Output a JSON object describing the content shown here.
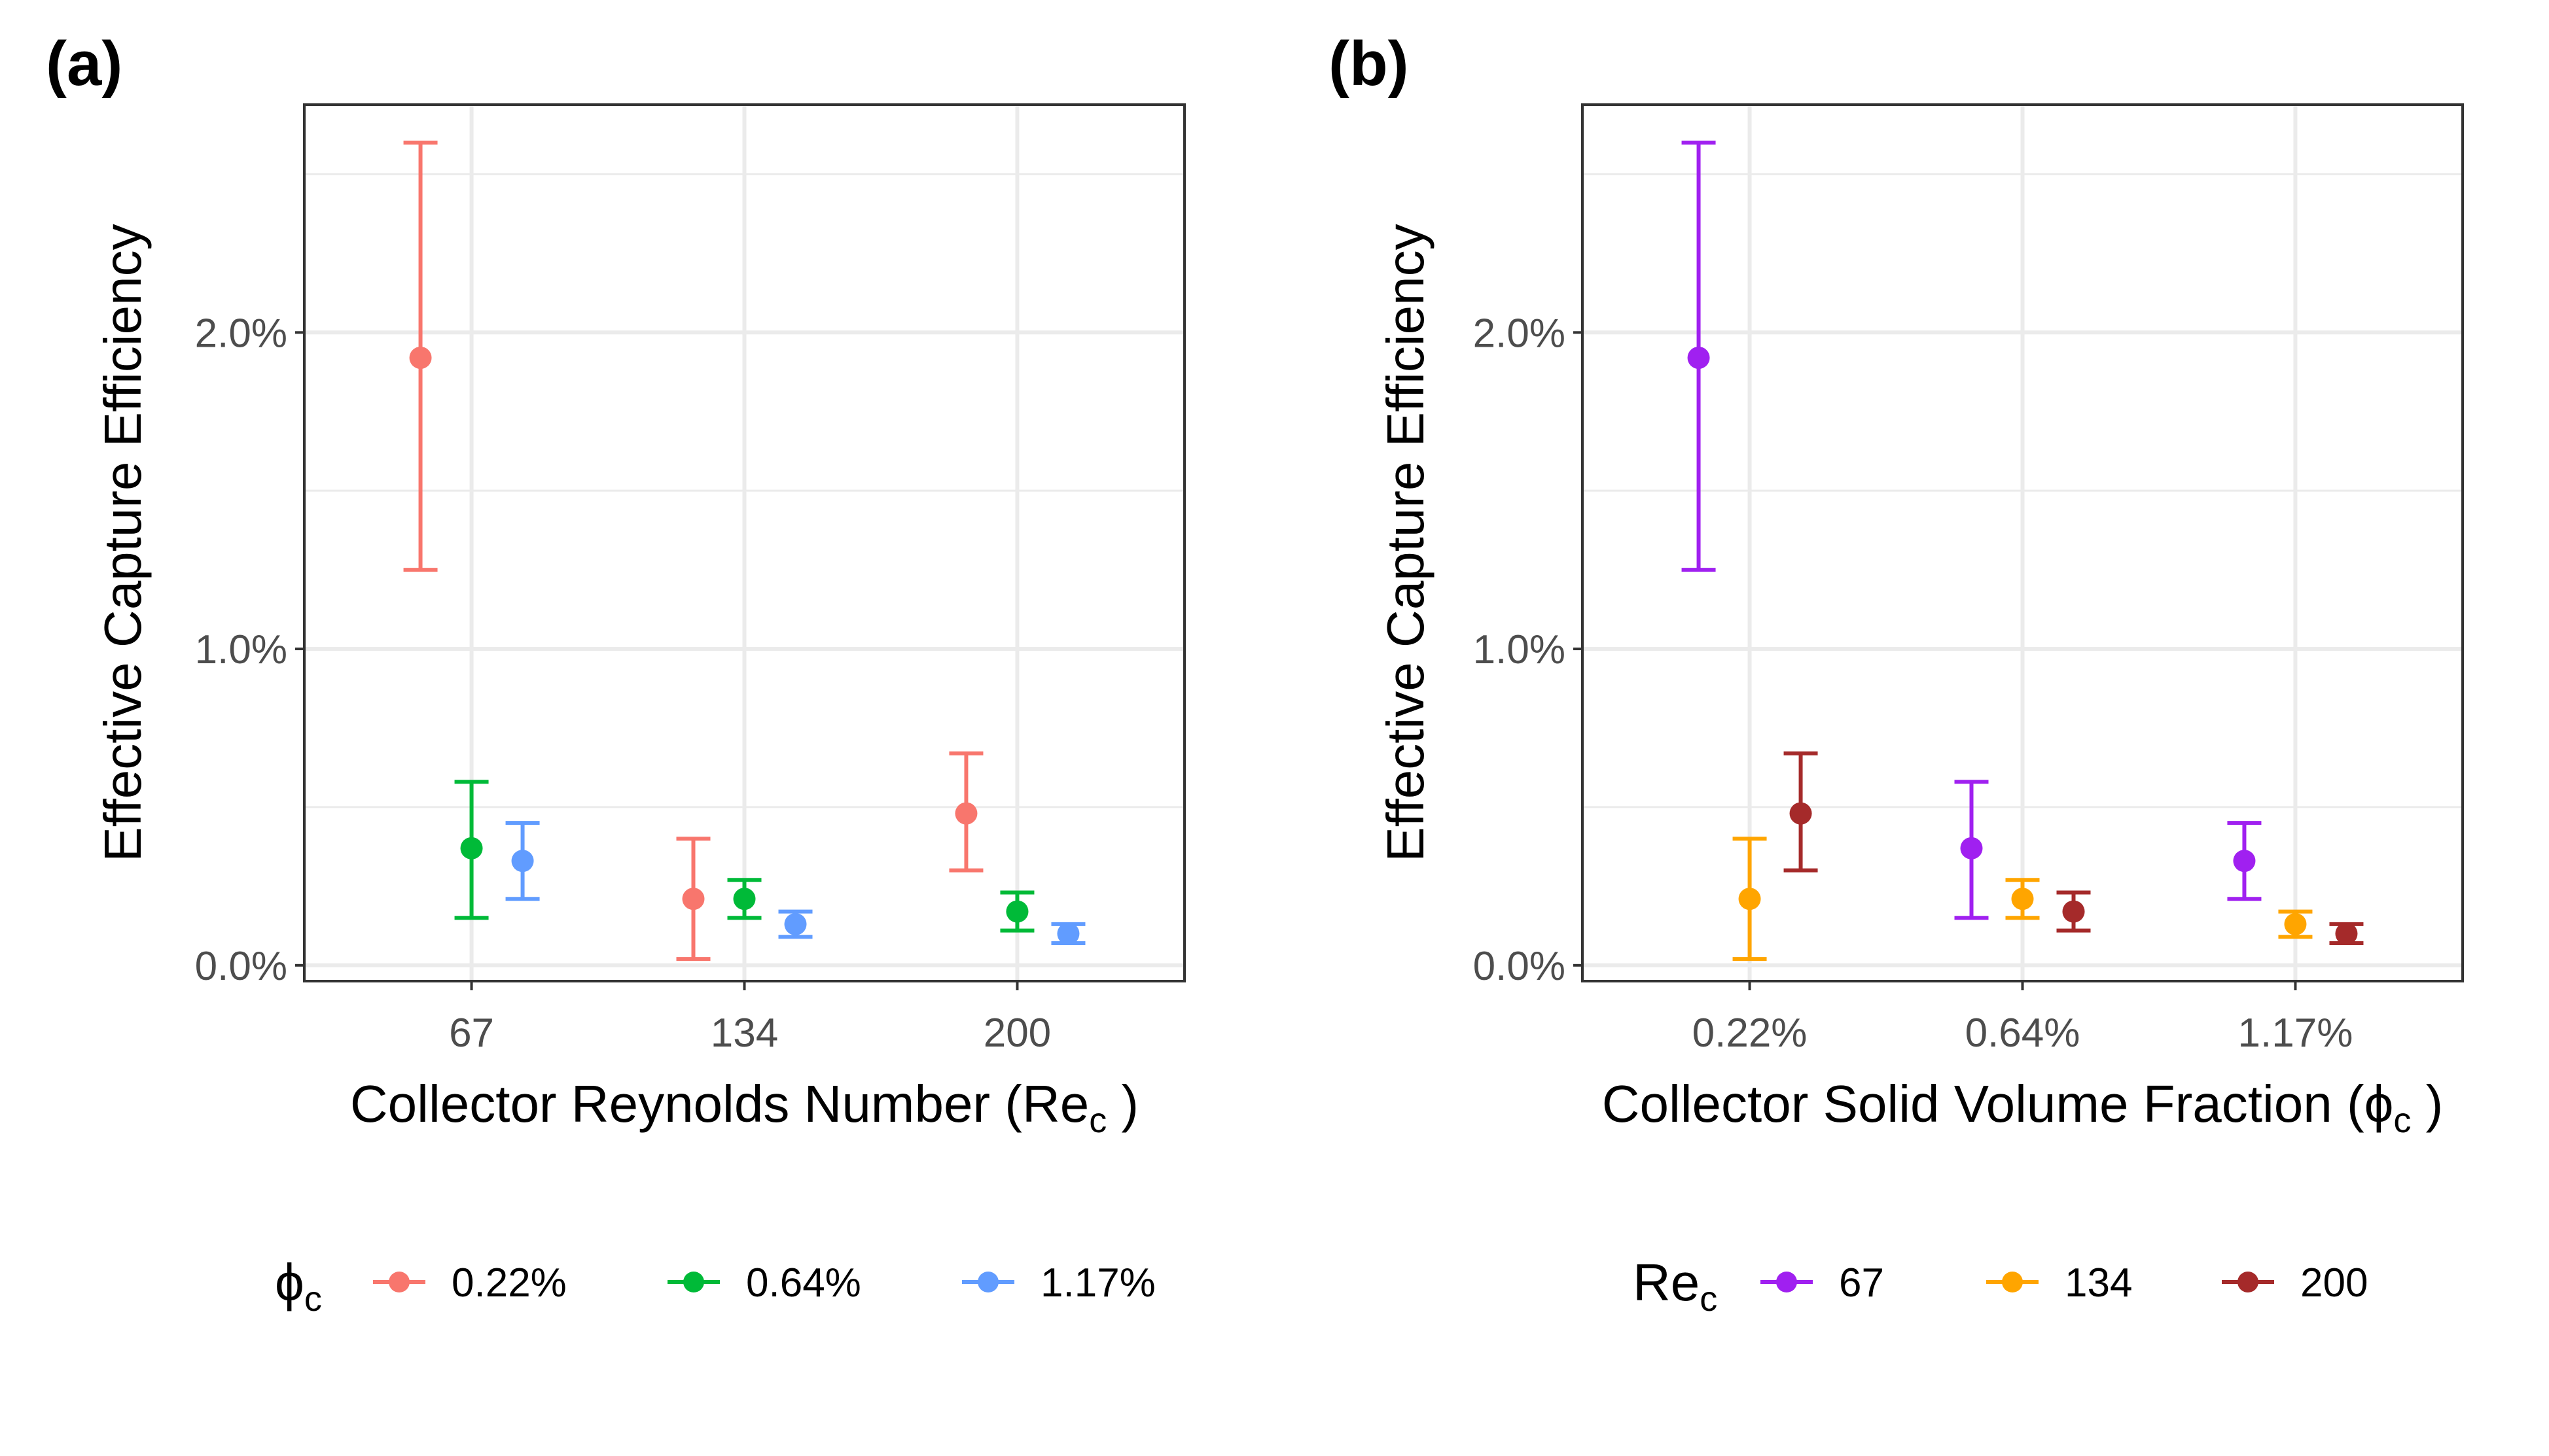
{
  "chart_data": [
    {
      "type": "scatter",
      "panel_label": "(a)",
      "categories": [
        "67",
        "134",
        "200"
      ],
      "xlabel": "Collector Reynolds Number (Re",
      "xlabel_sub": "c",
      "xlabel_tail": " )",
      "ylabel": "Effective Capture Efficiency",
      "ylim": [
        -0.0005,
        0.0272
      ],
      "yticks": [
        {
          "value": 0.0,
          "label": "0.0%"
        },
        {
          "value": 0.01,
          "label": "1.0%"
        },
        {
          "value": 0.02,
          "label": "2.0%"
        }
      ],
      "grid": true,
      "error_bars": true,
      "legend": {
        "position": "bottom",
        "title": "ϕ",
        "title_sub": "c",
        "items": [
          "0.22%",
          "0.64%",
          "1.17%"
        ]
      },
      "series": [
        {
          "name": "0.22%",
          "color": "#F8766D",
          "values": [
            0.0192,
            0.0021,
            0.0048
          ],
          "lower": [
            0.0125,
            0.0002,
            0.003
          ],
          "upper": [
            0.026,
            0.004,
            0.0067
          ]
        },
        {
          "name": "0.64%",
          "color": "#00BA38",
          "values": [
            0.0037,
            0.0021,
            0.0017
          ],
          "lower": [
            0.0015,
            0.0015,
            0.0011
          ],
          "upper": [
            0.0058,
            0.0027,
            0.0023
          ]
        },
        {
          "name": "1.17%",
          "color": "#619CFF",
          "values": [
            0.0033,
            0.0013,
            0.001
          ],
          "lower": [
            0.0021,
            0.0009,
            0.0007
          ],
          "upper": [
            0.0045,
            0.0017,
            0.0013
          ]
        }
      ]
    },
    {
      "type": "scatter",
      "panel_label": "(b)",
      "categories": [
        "0.22%",
        "0.64%",
        "1.17%"
      ],
      "xlabel": "Collector Solid Volume Fraction (ϕ",
      "xlabel_sub": "c",
      "xlabel_tail": " )",
      "ylabel": "Effective Capture Efficiency",
      "ylim": [
        -0.0005,
        0.0272
      ],
      "yticks": [
        {
          "value": 0.0,
          "label": "0.0%"
        },
        {
          "value": 0.01,
          "label": "1.0%"
        },
        {
          "value": 0.02,
          "label": "2.0%"
        }
      ],
      "grid": true,
      "error_bars": true,
      "legend": {
        "position": "bottom",
        "title": "Re",
        "title_sub": "c",
        "items": [
          "67",
          "134",
          "200"
        ]
      },
      "series": [
        {
          "name": "67",
          "color": "#A020F0",
          "values": [
            0.0192,
            0.0037,
            0.0033
          ],
          "lower": [
            0.0125,
            0.0015,
            0.0021
          ],
          "upper": [
            0.026,
            0.0058,
            0.0045
          ]
        },
        {
          "name": "134",
          "color": "#FFA500",
          "values": [
            0.0021,
            0.0021,
            0.0013
          ],
          "lower": [
            0.0002,
            0.0015,
            0.0009
          ],
          "upper": [
            0.004,
            0.0027,
            0.0017
          ]
        },
        {
          "name": "200",
          "color": "#A52A2A",
          "values": [
            0.0048,
            0.0017,
            0.001
          ],
          "lower": [
            0.003,
            0.0011,
            0.0007
          ],
          "upper": [
            0.0067,
            0.0023,
            0.0013
          ]
        }
      ]
    }
  ]
}
